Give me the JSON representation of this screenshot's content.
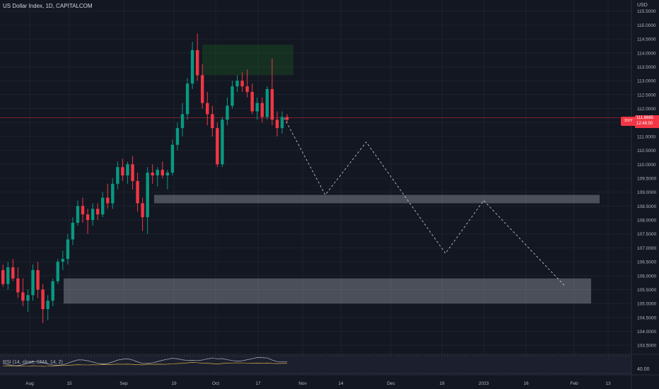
{
  "header": {
    "title": "US Dollar Index, 1D, CAPITALCOM",
    "currency": "USD"
  },
  "price_tag": {
    "symbol": "DXY",
    "price": "111.6665",
    "countdown": "12:46:50"
  },
  "rsi": {
    "label": "RSI (14, close, SMA, 14, 2)",
    "value": "40.00"
  },
  "colors": {
    "background": "#131722",
    "up": "#089981",
    "down": "#f23645",
    "grid": "#1e222d",
    "zone": "#e0e3eb",
    "supply_zone": "#1b5e20"
  },
  "chart_data": {
    "type": "candlestick",
    "title": "US Dollar Index, 1D, CAPITALCOM",
    "y_axis": {
      "ticks": [
        "115.5000",
        "115.0000",
        "114.5000",
        "114.0000",
        "113.5000",
        "113.0000",
        "112.5000",
        "112.0000",
        "111.5000",
        "111.0000",
        "110.5000",
        "110.0000",
        "109.5000",
        "109.0000",
        "108.5000",
        "108.0000",
        "107.5000",
        "107.0000",
        "106.5000",
        "106.0000",
        "105.5000",
        "105.0000",
        "104.5000",
        "104.0000",
        "103.5000"
      ],
      "range": [
        103.2,
        115.9
      ]
    },
    "x_axis": {
      "ticks": [
        "Aug",
        "15",
        "Sep",
        "19",
        "Oct",
        "17",
        "Nov",
        "14",
        "Dec",
        "19",
        "2023",
        "16",
        "Feb",
        "13"
      ]
    },
    "ohlc": [
      [
        106.2,
        106.4,
        105.6,
        105.7
      ],
      [
        105.7,
        106.5,
        105.5,
        106.3
      ],
      [
        106.3,
        106.6,
        105.8,
        105.9
      ],
      [
        105.9,
        106.3,
        105.2,
        105.4
      ],
      [
        105.4,
        105.9,
        104.9,
        105.1
      ],
      [
        105.1,
        105.5,
        104.7,
        105.3
      ],
      [
        105.3,
        106.4,
        105.1,
        106.2
      ],
      [
        106.2,
        106.5,
        105.2,
        105.5
      ],
      [
        105.5,
        105.7,
        104.3,
        104.8
      ],
      [
        104.8,
        105.3,
        104.4,
        105.1
      ],
      [
        105.1,
        105.9,
        104.9,
        105.8
      ],
      [
        105.8,
        106.6,
        105.7,
        106.5
      ],
      [
        106.5,
        106.9,
        106.2,
        106.6
      ],
      [
        106.6,
        107.5,
        106.4,
        107.3
      ],
      [
        107.3,
        108.1,
        107.1,
        107.9
      ],
      [
        107.9,
        108.7,
        107.8,
        108.5
      ],
      [
        108.5,
        108.8,
        107.9,
        108.2
      ],
      [
        108.2,
        108.4,
        107.5,
        108.0
      ],
      [
        108.0,
        108.6,
        107.8,
        108.4
      ],
      [
        108.4,
        108.6,
        108.0,
        108.2
      ],
      [
        108.2,
        109.0,
        108.1,
        108.8
      ],
      [
        108.8,
        109.3,
        108.4,
        108.6
      ],
      [
        108.6,
        109.5,
        108.4,
        109.3
      ],
      [
        109.3,
        110.1,
        109.1,
        109.9
      ],
      [
        109.9,
        110.2,
        109.4,
        109.6
      ],
      [
        109.6,
        110.1,
        109.3,
        110.0
      ],
      [
        110.0,
        110.3,
        109.1,
        109.4
      ],
      [
        109.4,
        109.7,
        108.3,
        108.6
      ],
      [
        108.6,
        108.8,
        107.6,
        108.1
      ],
      [
        108.1,
        109.9,
        107.5,
        109.7
      ],
      [
        109.7,
        110.0,
        109.3,
        109.6
      ],
      [
        109.6,
        109.9,
        109.2,
        109.8
      ],
      [
        109.8,
        110.1,
        109.5,
        109.6
      ],
      [
        109.6,
        109.8,
        109.1,
        109.7
      ],
      [
        109.7,
        110.9,
        109.6,
        110.7
      ],
      [
        110.7,
        111.5,
        110.5,
        111.3
      ],
      [
        111.3,
        112.2,
        111.0,
        111.8
      ],
      [
        111.8,
        113.1,
        111.6,
        112.9
      ],
      [
        112.9,
        114.4,
        112.7,
        114.1
      ],
      [
        114.1,
        114.7,
        113.0,
        113.2
      ],
      [
        113.2,
        113.6,
        112.0,
        112.2
      ],
      [
        112.2,
        112.6,
        111.4,
        111.8
      ],
      [
        111.8,
        112.1,
        111.0,
        111.3
      ],
      [
        111.3,
        111.5,
        109.9,
        110.0
      ],
      [
        110.0,
        111.7,
        109.9,
        111.6
      ],
      [
        111.6,
        112.4,
        111.4,
        112.1
      ],
      [
        112.1,
        113.0,
        112.0,
        112.8
      ],
      [
        112.8,
        113.2,
        112.6,
        113.0
      ],
      [
        113.0,
        113.3,
        112.6,
        112.8
      ],
      [
        112.8,
        113.4,
        112.4,
        112.6
      ],
      [
        112.6,
        112.9,
        111.8,
        111.9
      ],
      [
        111.9,
        112.4,
        111.6,
        112.2
      ],
      [
        112.2,
        112.4,
        111.5,
        111.7
      ],
      [
        111.7,
        112.8,
        111.6,
        112.7
      ],
      [
        112.7,
        113.8,
        111.4,
        111.6
      ],
      [
        111.6,
        111.9,
        111.0,
        111.3
      ],
      [
        111.3,
        111.9,
        111.1,
        111.7
      ],
      [
        111.7,
        111.8,
        111.5,
        111.6
      ]
    ],
    "zones": [
      {
        "kind": "supply",
        "from": 113.2,
        "to": 114.3
      },
      {
        "kind": "resistance",
        "from": 108.6,
        "to": 108.9
      },
      {
        "kind": "support",
        "from": 105.0,
        "to": 105.9
      }
    ],
    "current_price": 111.6665,
    "projection": [
      111.6665,
      108.9,
      110.8,
      106.8,
      108.7,
      105.6
    ]
  }
}
